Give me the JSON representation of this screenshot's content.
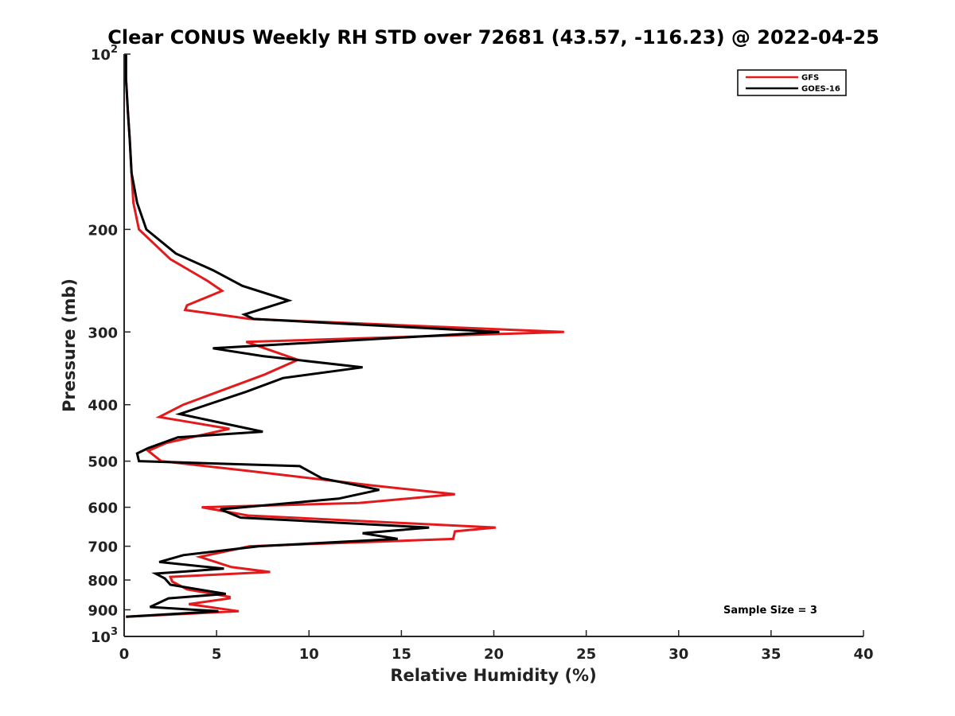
{
  "chart_data": {
    "type": "line",
    "title": "Clear CONUS Weekly RH STD over 72681 (43.57, -116.23) @ 2022-04-25",
    "xlabel": "Relative Humidity (%)",
    "ylabel": "Pressure (mb)",
    "xlim": [
      0,
      40
    ],
    "ylim": [
      100,
      1000
    ],
    "yscale": "log",
    "y_reversed": true,
    "x_ticks": [
      "0",
      "5",
      "10",
      "15",
      "20",
      "25",
      "30",
      "35",
      "40"
    ],
    "x_tick_values": [
      0,
      5,
      10,
      15,
      20,
      25,
      30,
      35,
      40
    ],
    "y_ticks": [
      {
        "value": 100,
        "base": "10",
        "exp": "2"
      },
      {
        "value": 200,
        "base": "200",
        "exp": ""
      },
      {
        "value": 300,
        "base": "300",
        "exp": ""
      },
      {
        "value": 400,
        "base": "400",
        "exp": ""
      },
      {
        "value": 500,
        "base": "500",
        "exp": ""
      },
      {
        "value": 600,
        "base": "600",
        "exp": ""
      },
      {
        "value": 700,
        "base": "700",
        "exp": ""
      },
      {
        "value": 800,
        "base": "800",
        "exp": ""
      },
      {
        "value": 900,
        "base": "900",
        "exp": ""
      },
      {
        "value": 1000,
        "base": "10",
        "exp": "3"
      }
    ],
    "grid": false,
    "legend_position": "top-right",
    "annotation": "Sample Size = 3",
    "series": [
      {
        "name": "GFS",
        "color": "#e31a1c",
        "x": [
          0.1,
          0.1,
          0.2,
          0.3,
          0.4,
          0.5,
          0.8,
          2.5,
          4.5,
          5.3,
          3.4,
          3.3,
          6.8,
          23.8,
          6.6,
          9.4,
          7.6,
          3.2,
          1.9,
          5.7,
          2.3,
          1.3,
          2.0,
          6.8,
          13.3,
          17.9,
          12.7,
          4.2,
          6.7,
          20.1,
          17.9,
          17.8,
          6.8,
          4.1,
          5.8,
          7.9,
          2.5,
          2.6,
          3.4,
          5.7,
          5.7,
          3.5,
          6.2,
          0.1
        ],
        "y": [
          100,
          110,
          125,
          140,
          160,
          180,
          200,
          225,
          245,
          255,
          270,
          275,
          285,
          300,
          312,
          335,
          355,
          400,
          420,
          440,
          465,
          480,
          500,
          520,
          550,
          570,
          590,
          600,
          620,
          650,
          660,
          680,
          700,
          730,
          760,
          775,
          790,
          805,
          830,
          855,
          860,
          880,
          905,
          925
        ]
      },
      {
        "name": "GOES-16",
        "color": "#000000",
        "x": [
          0.1,
          0.1,
          0.2,
          0.3,
          0.4,
          0.7,
          1.2,
          2.8,
          4.8,
          6.4,
          8.9,
          6.5,
          7.0,
          20.3,
          4.8,
          7.5,
          12.9,
          8.6,
          6.6,
          3.0,
          7.5,
          2.9,
          1.3,
          0.7,
          0.8,
          9.5,
          10.7,
          13.8,
          11.6,
          5.2,
          6.3,
          16.5,
          12.9,
          14.8,
          7.3,
          3.2,
          1.9,
          5.4,
          1.7,
          2.2,
          2.5,
          5.5,
          2.4,
          1.4,
          5.1,
          0.1
        ],
        "y": [
          100,
          110,
          125,
          140,
          160,
          180,
          200,
          220,
          235,
          250,
          265,
          280,
          285,
          300,
          320,
          330,
          345,
          360,
          380,
          415,
          445,
          455,
          475,
          485,
          500,
          510,
          535,
          560,
          580,
          605,
          625,
          650,
          665,
          680,
          700,
          725,
          745,
          765,
          780,
          795,
          815,
          845,
          860,
          890,
          905,
          925
        ]
      }
    ]
  }
}
